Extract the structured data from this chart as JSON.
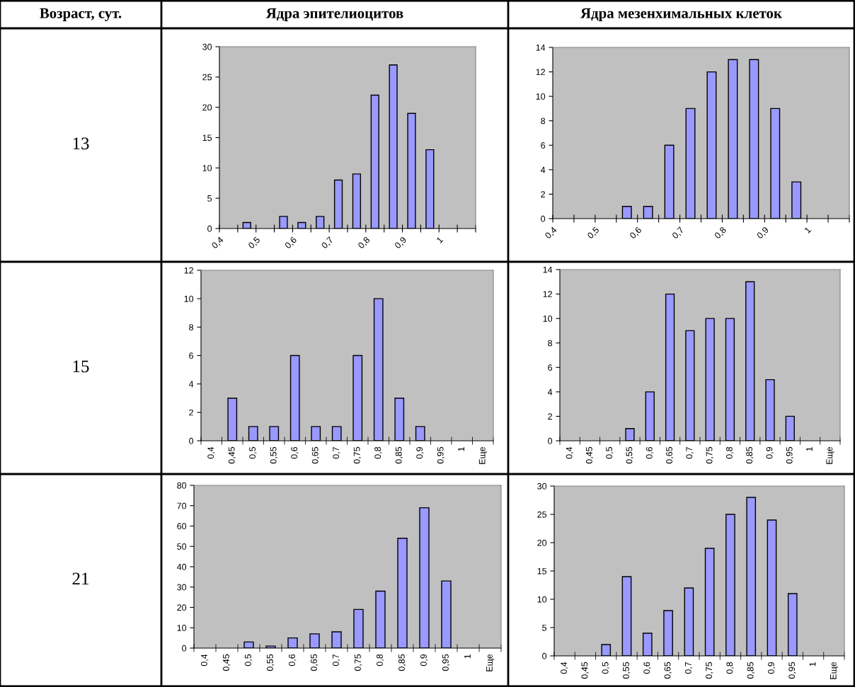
{
  "chart_data": [
    {
      "type": "other",
      "annotations": [
        "Возраст, сут.",
        "Ядра эпителиоцитов",
        "Ядра мезенхимальных клеток",
        "13",
        "15",
        "21"
      ]
    },
    {
      "type": "histogram",
      "bins": [
        0.4,
        0.45,
        0.5,
        0.55,
        0.6,
        0.65,
        0.7,
        0.75,
        0.8,
        0.85,
        0.9,
        0.95,
        1.0,
        1.05,
        1.1
      ],
      "values": [
        0,
        1,
        0,
        2,
        1,
        2,
        8,
        9,
        22,
        27,
        19,
        13,
        0,
        0
      ],
      "color": "#9999ff",
      "xlim": [
        0.4,
        1.1
      ],
      "xticks": [
        {
          "value": 0.4,
          "label": "0,4"
        },
        {
          "value": 0.45,
          "label": null
        },
        {
          "value": 0.5,
          "label": "0,5"
        },
        {
          "value": 0.55,
          "label": null
        },
        {
          "value": 0.6,
          "label": "0,6"
        },
        {
          "value": 0.65,
          "label": null
        },
        {
          "value": 0.7,
          "label": "0,7"
        },
        {
          "value": 0.75,
          "label": null
        },
        {
          "value": 0.8,
          "label": "0,8"
        },
        {
          "value": 0.85,
          "label": null
        },
        {
          "value": 0.9,
          "label": "0,9"
        },
        {
          "value": 0.95,
          "label": null
        },
        {
          "value": 1.0,
          "label": "1"
        },
        {
          "value": 1.05,
          "label": null
        },
        {
          "value": 1.1,
          "label": null
        }
      ],
      "ylim": [
        0,
        30
      ],
      "yticks": [
        0,
        5,
        10,
        15,
        20,
        25,
        30
      ],
      "grid": false
    },
    {
      "type": "histogram",
      "bins": [
        0.4,
        0.45,
        0.5,
        0.55,
        0.6,
        0.65,
        0.7,
        0.75,
        0.8,
        0.85,
        0.9,
        0.95,
        1.0,
        1.05,
        1.1
      ],
      "values": [
        0,
        0,
        0,
        1,
        1,
        6,
        9,
        12,
        13,
        13,
        9,
        3,
        0,
        0
      ],
      "color": "#9999ff",
      "xlim": [
        0.4,
        1.1
      ],
      "xticks": [
        {
          "value": 0.4,
          "label": "0,4"
        },
        {
          "value": 0.45,
          "label": null
        },
        {
          "value": 0.5,
          "label": "0,5"
        },
        {
          "value": 0.55,
          "label": null
        },
        {
          "value": 0.6,
          "label": "0,6"
        },
        {
          "value": 0.65,
          "label": null
        },
        {
          "value": 0.7,
          "label": "0,7"
        },
        {
          "value": 0.75,
          "label": null
        },
        {
          "value": 0.8,
          "label": "0,8"
        },
        {
          "value": 0.85,
          "label": null
        },
        {
          "value": 0.9,
          "label": "0,9"
        },
        {
          "value": 0.95,
          "label": null
        },
        {
          "value": 1.0,
          "label": "1"
        },
        {
          "value": 1.05,
          "label": null
        },
        {
          "value": 1.1,
          "label": null
        }
      ],
      "ylim": [
        0,
        14
      ],
      "yticks": [
        0,
        2,
        4,
        6,
        8,
        10,
        12,
        14
      ],
      "grid": false
    },
    {
      "type": "bar",
      "categories": [
        "0,4",
        "0,45",
        "0,5",
        "0,55",
        "0,6",
        "0,65",
        "0,7",
        "0,75",
        "0,8",
        "0,85",
        "0,9",
        "0,95",
        "1",
        "Еще"
      ],
      "values": [
        0,
        3,
        1,
        1,
        6,
        1,
        1,
        6,
        10,
        3,
        1,
        0,
        0,
        0
      ],
      "color": "#9999ff",
      "ylim": [
        0,
        12
      ],
      "yticks": [
        0,
        2,
        4,
        6,
        8,
        10,
        12
      ],
      "grid": false
    },
    {
      "type": "bar",
      "categories": [
        "0,4",
        "0,45",
        "0,5",
        "0,55",
        "0,6",
        "0,65",
        "0,7",
        "0,75",
        "0,8",
        "0,85",
        "0,9",
        "0,95",
        "1",
        "Еще"
      ],
      "values": [
        0,
        0,
        0,
        1,
        4,
        12,
        9,
        10,
        10,
        13,
        5,
        2,
        0,
        0
      ],
      "color": "#9999ff",
      "ylim": [
        0,
        14
      ],
      "yticks": [
        0,
        2,
        4,
        6,
        8,
        10,
        12,
        14
      ],
      "grid": false
    },
    {
      "type": "bar",
      "categories": [
        "0,4",
        "0,45",
        "0,5",
        "0,55",
        "0,6",
        "0,65",
        "0,7",
        "0,75",
        "0,8",
        "0,85",
        "0,9",
        "0,95",
        "1",
        "Еще"
      ],
      "values": [
        0,
        0,
        3,
        1,
        5,
        7,
        8,
        19,
        28,
        54,
        69,
        33,
        0,
        0
      ],
      "color": "#9999ff",
      "ylim": [
        0,
        80
      ],
      "yticks": [
        0,
        10,
        20,
        30,
        40,
        50,
        60,
        70,
        80
      ],
      "grid": false
    },
    {
      "type": "bar",
      "categories": [
        "0,4",
        "0,45",
        "0,5",
        "0,55",
        "0,6",
        "0,65",
        "0,7",
        "0,75",
        "0,8",
        "0,85",
        "0,9",
        "0,95",
        "1",
        "Еще"
      ],
      "values": [
        0,
        0,
        2,
        14,
        4,
        8,
        12,
        19,
        25,
        28,
        24,
        11,
        0,
        0
      ],
      "color": "#9999ff",
      "ylim": [
        0,
        30
      ],
      "yticks": [
        0,
        5,
        10,
        15,
        20,
        25,
        30
      ],
      "grid": false
    }
  ]
}
